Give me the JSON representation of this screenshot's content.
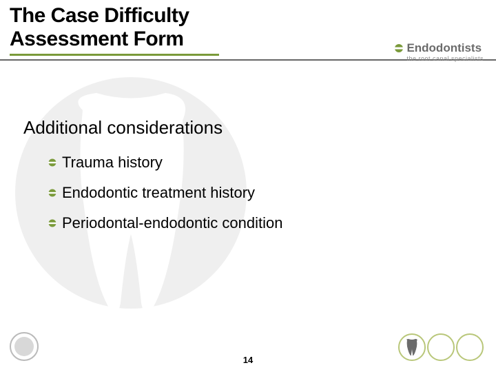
{
  "title": {
    "line1": "The Case Difficulty",
    "line2": "Assessment Form",
    "fontsize": 30,
    "color": "#000000",
    "underline_color": "#7a9a3a",
    "underline_width": 304
  },
  "logo": {
    "bullet_color": "#7a9a3a",
    "main_text": "Endodontists",
    "main_color": "#6b6b6b",
    "main_fontsize": 17,
    "sub_text": "the root canal specialists",
    "sub_color": "#8a8a8a",
    "sub_fontsize": 9
  },
  "subtitle": {
    "text": "Additional considerations",
    "fontsize": 26
  },
  "bullets": {
    "fontsize": 22,
    "icon_fill": "#7a9a3a",
    "icon_gap": "#ffffff",
    "items": [
      {
        "text": "Trauma history"
      },
      {
        "text": "Endodontic treatment history"
      },
      {
        "text": "Periodontal-endodontic condition"
      }
    ]
  },
  "page_number": {
    "text": "14",
    "fontsize": 13,
    "color": "#000000"
  },
  "bg_tooth": {
    "fill": "#7a7a7a"
  },
  "seal": {
    "ring": "#b8b8b8",
    "inner": "#d8d8d8"
  },
  "footer_circles": {
    "border_color": "#b9c77a",
    "count": 3,
    "first_tooth_fill": "#6b6b6b"
  }
}
